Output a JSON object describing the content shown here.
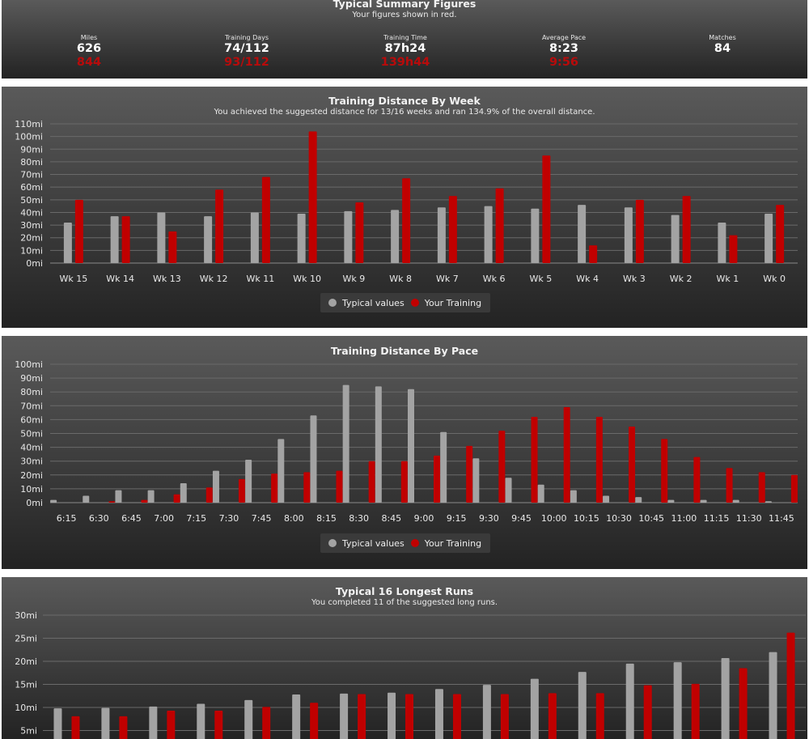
{
  "colors": {
    "typical": "#a3a3a3",
    "yours": "#c00000"
  },
  "summary": {
    "title": "Typical Summary Figures",
    "subtitle": "Your figures shown in red.",
    "stats": [
      {
        "label": "Miles",
        "value": "626",
        "yours": "844"
      },
      {
        "label": "Training Days",
        "value": "74/112",
        "yours": "93/112"
      },
      {
        "label": "Training Time",
        "value": "87h24",
        "yours": "139h44"
      },
      {
        "label": "Average Pace",
        "value": "8:23",
        "yours": "9:56"
      },
      {
        "label": "Matches",
        "value": "84",
        "yours": ""
      }
    ]
  },
  "chart_data": [
    {
      "type": "bar",
      "title": "Training Distance By Week",
      "subtitle": "You achieved the suggested distance for 13/16 weeks and ran 134.9% of the overall distance.",
      "categories": [
        "Wk 15",
        "Wk 14",
        "Wk 13",
        "Wk 12",
        "Wk 11",
        "Wk 10",
        "Wk 9",
        "Wk 8",
        "Wk 7",
        "Wk 6",
        "Wk 5",
        "Wk 4",
        "Wk 3",
        "Wk 2",
        "Wk 1",
        "Wk 0"
      ],
      "series": [
        {
          "name": "Typical values",
          "values": [
            32,
            37,
            40,
            37,
            40,
            39,
            41,
            42,
            44,
            45,
            43,
            46,
            44,
            38,
            32,
            39
          ]
        },
        {
          "name": "Your Training",
          "values": [
            50,
            37,
            25,
            58,
            68,
            104,
            48,
            67,
            53,
            59,
            85,
            14,
            50,
            53,
            22,
            46
          ]
        }
      ],
      "yticks": [
        "0mi",
        "10mi",
        "20mi",
        "30mi",
        "40mi",
        "50mi",
        "60mi",
        "70mi",
        "80mi",
        "90mi",
        "100mi",
        "110mi"
      ],
      "ylim": [
        0,
        110
      ],
      "legend": [
        "Typical values",
        "Your Training"
      ]
    },
    {
      "type": "bar",
      "title": "Training Distance By Pace",
      "categories": [
        "6:15",
        "6:30",
        "6:45",
        "7:00",
        "7:15",
        "7:30",
        "7:45",
        "8:00",
        "8:15",
        "8:30",
        "8:45",
        "9:00",
        "9:15",
        "9:30",
        "9:45",
        "10:00",
        "10:15",
        "10:30",
        "10:45",
        "11:00",
        "11:15",
        "11:30",
        "11:45"
      ],
      "series": [
        {
          "name": "Typical values",
          "values": [
            2,
            5,
            9,
            9,
            14,
            23,
            31,
            46,
            63,
            85,
            84,
            82,
            51,
            32,
            18,
            13,
            9,
            5,
            4,
            2,
            2,
            2,
            1
          ]
        },
        {
          "name": "Your Training",
          "values": [
            0,
            1,
            2,
            6,
            11,
            17,
            21,
            22,
            23,
            30,
            30,
            34,
            41,
            52,
            62,
            69,
            62,
            55,
            46,
            33,
            25,
            22,
            20
          ]
        }
      ],
      "yticks": [
        "0mi",
        "10mi",
        "20mi",
        "30mi",
        "40mi",
        "50mi",
        "60mi",
        "70mi",
        "80mi",
        "90mi",
        "100mi"
      ],
      "ylim": [
        0,
        100
      ],
      "legend": [
        "Typical values",
        "Your Training"
      ]
    },
    {
      "type": "bar",
      "title": "Typical 16 Longest Runs",
      "subtitle": "You completed 11 of the suggested long runs.",
      "categories": [
        "",
        "",
        "",
        "",
        "",
        "",
        "",
        "",
        "",
        "",
        "",
        "",
        "",
        "",
        "",
        ""
      ],
      "series": [
        {
          "name": "Typical values",
          "values": [
            9.8,
            9.9,
            10.2,
            10.8,
            11.6,
            12.8,
            13.0,
            13.2,
            14.0,
            14.9,
            16.2,
            17.7,
            19.5,
            19.8,
            20.7,
            22.0
          ]
        },
        {
          "name": "Your Training",
          "values": [
            8.1,
            8.1,
            9.3,
            9.3,
            10.1,
            11.0,
            12.9,
            12.9,
            12.9,
            12.9,
            13.1,
            13.1,
            14.8,
            15.1,
            18.5,
            26.2
          ]
        }
      ],
      "yticks": [
        "5mi",
        "10mi",
        "15mi",
        "20mi",
        "25mi",
        "30mi"
      ],
      "ylim": [
        0,
        30
      ]
    }
  ]
}
